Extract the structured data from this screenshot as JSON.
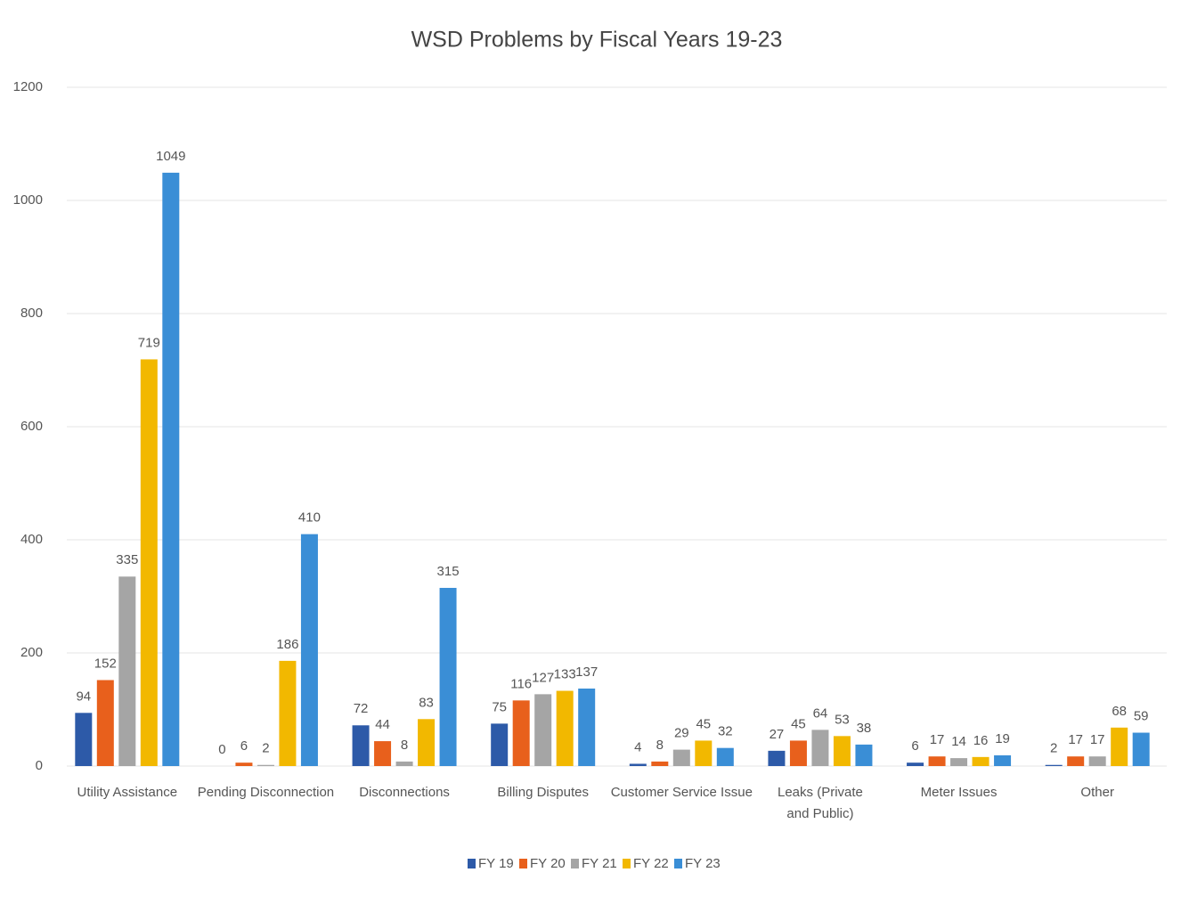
{
  "chart_data": {
    "type": "bar",
    "title": "WSD Problems by Fiscal Years 19-23",
    "categories": [
      "Utility Assistance",
      "Pending Disconnection",
      "Disconnections",
      "Billing Disputes",
      "Customer Service Issue",
      "Leaks (Private and Public)",
      "Meter Issues",
      "Other"
    ],
    "series": [
      {
        "name": "FY 19",
        "color": "#2d5aa8",
        "values": [
          94,
          0,
          72,
          75,
          4,
          27,
          6,
          2
        ]
      },
      {
        "name": "FY 20",
        "color": "#e8601c",
        "values": [
          152,
          6,
          44,
          116,
          8,
          45,
          17,
          17
        ]
      },
      {
        "name": "FY 21",
        "color": "#a5a5a5",
        "values": [
          335,
          2,
          8,
          127,
          29,
          64,
          14,
          17
        ]
      },
      {
        "name": "FY 22",
        "color": "#f2b800",
        "values": [
          719,
          186,
          83,
          133,
          45,
          53,
          16,
          68
        ]
      },
      {
        "name": "FY 23",
        "color": "#3a8ed6",
        "values": [
          1049,
          410,
          315,
          137,
          32,
          38,
          19,
          59
        ]
      }
    ],
    "ylim": [
      0,
      1200
    ],
    "yticks": [
      0,
      200,
      400,
      600,
      800,
      1000,
      1200
    ],
    "grid": true,
    "legend": "bottom"
  }
}
